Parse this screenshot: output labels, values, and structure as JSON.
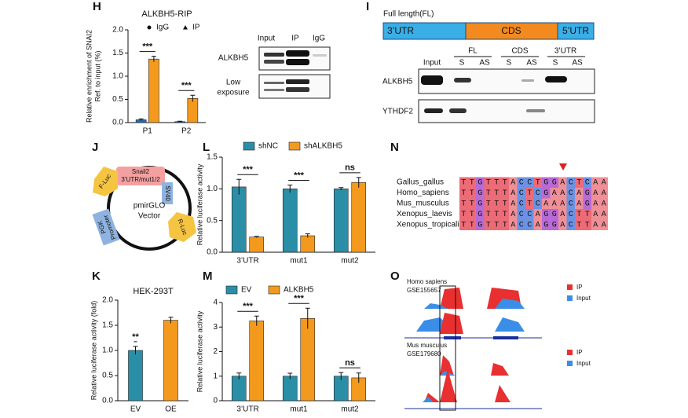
{
  "chart_data": [
    {
      "panel": "H",
      "type": "bar",
      "title": "ALKBH5-RIP",
      "ylabel": [
        "Relative enrichment of SNAI2",
        "Ref. to input (%)"
      ],
      "categories": [
        "P1",
        "P2"
      ],
      "series": [
        {
          "name": "IgG",
          "color": "#2b6cb0",
          "marker": "circle",
          "values": [
            0.06,
            0.02
          ],
          "errors": [
            0.02,
            0.01
          ]
        },
        {
          "name": "IP",
          "color": "#f39a1e",
          "marker": "triangle",
          "values": [
            1.37,
            0.52
          ],
          "errors": [
            0.06,
            0.07
          ]
        }
      ],
      "ylim": [
        0,
        2
      ],
      "yticks": [
        {
          "value": 0,
          "label": "0.0"
        },
        {
          "value": 0.5,
          "label": "0.5"
        },
        {
          "value": 1,
          "label": "1.0"
        },
        {
          "value": 1.5,
          "label": "1.5"
        },
        {
          "value": 2,
          "label": "2.0"
        }
      ],
      "annotations": [
        "***",
        "***"
      ]
    },
    {
      "panel": "L",
      "type": "bar",
      "ylabel": [
        "Relative luciferase activity"
      ],
      "categories": [
        "3’UTR",
        "mut1",
        "mut2"
      ],
      "series": [
        {
          "name": "shNC",
          "color": "#2a8fa6",
          "values": [
            1.03,
            1.0,
            1.0
          ],
          "errors": [
            0.12,
            0.06,
            0.02
          ]
        },
        {
          "name": "shALKBH5",
          "color": "#f39a1e",
          "values": [
            0.24,
            0.26,
            1.1
          ],
          "errors": [
            0.01,
            0.03,
            0.08
          ]
        }
      ],
      "ylim": [
        0,
        1.5
      ],
      "yticks": [
        {
          "value": 0,
          "label": "0.0"
        },
        {
          "value": 0.5,
          "label": "0.5"
        },
        {
          "value": 1,
          "label": "1.0"
        },
        {
          "value": 1.5,
          "label": "1.5"
        }
      ],
      "annotations": [
        "***",
        "***",
        "ns"
      ]
    },
    {
      "panel": "K",
      "type": "bar",
      "title": "HEK-293T",
      "ylabel": [
        "Relative luciferase activity (fold)"
      ],
      "categories": [
        "EV",
        "OE"
      ],
      "values": [
        1.0,
        1.6
      ],
      "errors": [
        0.08,
        0.06
      ],
      "colors": [
        "#2a8fa6",
        "#f39a1e"
      ],
      "ylim": [
        0,
        2
      ],
      "yticks": [
        {
          "value": 0,
          "label": "0.0"
        },
        {
          "value": 0.5,
          "label": "0.5"
        },
        {
          "value": 1,
          "label": "1.0"
        },
        {
          "value": 1.5,
          "label": "1.5"
        },
        {
          "value": 2,
          "label": "2.0"
        }
      ],
      "annotations": [
        "**"
      ]
    },
    {
      "panel": "M",
      "type": "bar",
      "ylabel": [
        "Relative luciferase activity"
      ],
      "categories": [
        "3’UTR",
        "mut1",
        "mut2"
      ],
      "series": [
        {
          "name": "EV",
          "color": "#2a8fa6",
          "values": [
            1.0,
            1.0,
            1.0
          ],
          "errors": [
            0.13,
            0.12,
            0.15
          ]
        },
        {
          "name": "ALKBH5",
          "color": "#f39a1e",
          "values": [
            3.25,
            3.35,
            0.93
          ],
          "errors": [
            0.2,
            0.42,
            0.2
          ]
        }
      ],
      "ylim": [
        0,
        4
      ],
      "yticks": [
        0,
        1,
        2,
        3,
        4
      ],
      "annotations": [
        "***",
        "***",
        "ns"
      ]
    }
  ],
  "blot_h": {
    "lanes": [
      "Input",
      "IP",
      "IgG"
    ],
    "rows": [
      "ALKBH5",
      [
        "Low",
        "exposure"
      ]
    ]
  },
  "panel_i": {
    "panel": "I",
    "title": "Full length(FL)",
    "segments": [
      "3’UTR",
      "CDS",
      "5’UTR"
    ],
    "input": "Input",
    "groups": [
      "FL",
      "CDS",
      "3’UTR"
    ],
    "strands": [
      "S",
      "AS",
      "S",
      "AS",
      "S",
      "AS"
    ],
    "rows": [
      "ALKBH5",
      "YTHDF2"
    ]
  },
  "panel_j": {
    "panel": "J",
    "vector": [
      "pmirGLO",
      "Vector"
    ],
    "insert": [
      "Snail2",
      "3’UTR/mut1/2"
    ],
    "elements": [
      "F-Luc",
      "SV40",
      "R-Luc",
      [
        "PGK",
        "Promoter"
      ]
    ]
  },
  "panel_n": {
    "panel": "N",
    "species": [
      "Gallus_gallus",
      "Homo_sapiens",
      "Mus_musculus",
      "Xenopus_laevis",
      "Xenopus_tropicalis"
    ],
    "sequences": [
      "TTGTTTACCTGGACTCAA",
      "TTGTTTACTCGAACAGAA",
      "TTGTTTACTCAAACAGAA",
      "TTGTTTACCAGGACTTAA",
      "TTGTTTACCAGGACTTAA"
    ]
  },
  "panel_o": {
    "panel": "O",
    "datasets": [
      {
        "species": "Homo sapiens",
        "accession": "GSE155657",
        "legend": [
          "IP",
          "Input"
        ]
      },
      {
        "species": "Mus musculus",
        "accession": "GSE179680",
        "legend": [
          "IP",
          "Input"
        ]
      }
    ]
  }
}
